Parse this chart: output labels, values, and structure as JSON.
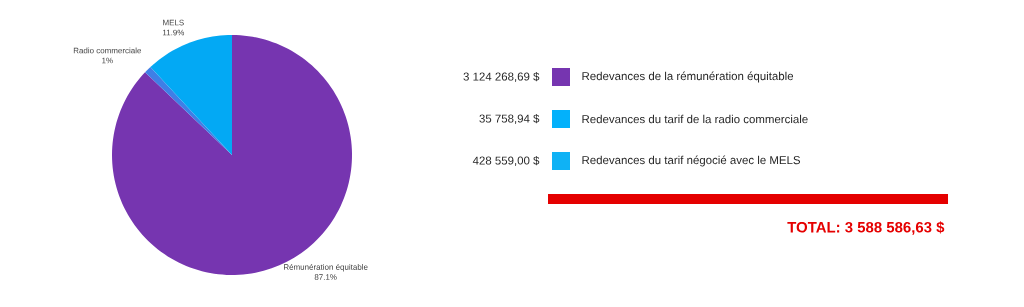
{
  "chart_data": [
    {
      "type": "pie",
      "categories": [
        "Rémunération équitable",
        "Radio commerciale",
        "MELS"
      ],
      "values": [
        87.1,
        1,
        11.9
      ],
      "value_labels": [
        "87.1%",
        "1%",
        "11.9%"
      ],
      "colors": [
        "#7635b0",
        "#3f7fe6",
        "#03a9f4"
      ]
    },
    {
      "type": "other",
      "categories": [
        "Redevances de la rémunération équitable",
        "Redevances du tarif de la radio commerciale",
        "Redevances du tarif négocié avec le MELS"
      ],
      "value_labels": [
        "3 124 268,69 $",
        "35 758,94  $",
        "428 559,00 $"
      ],
      "colors": [
        "#7635b0",
        "#03b1fb",
        "#0fb2f5"
      ],
      "annotations": [
        "TOTAL: 3 588 586,63 $"
      ]
    }
  ]
}
